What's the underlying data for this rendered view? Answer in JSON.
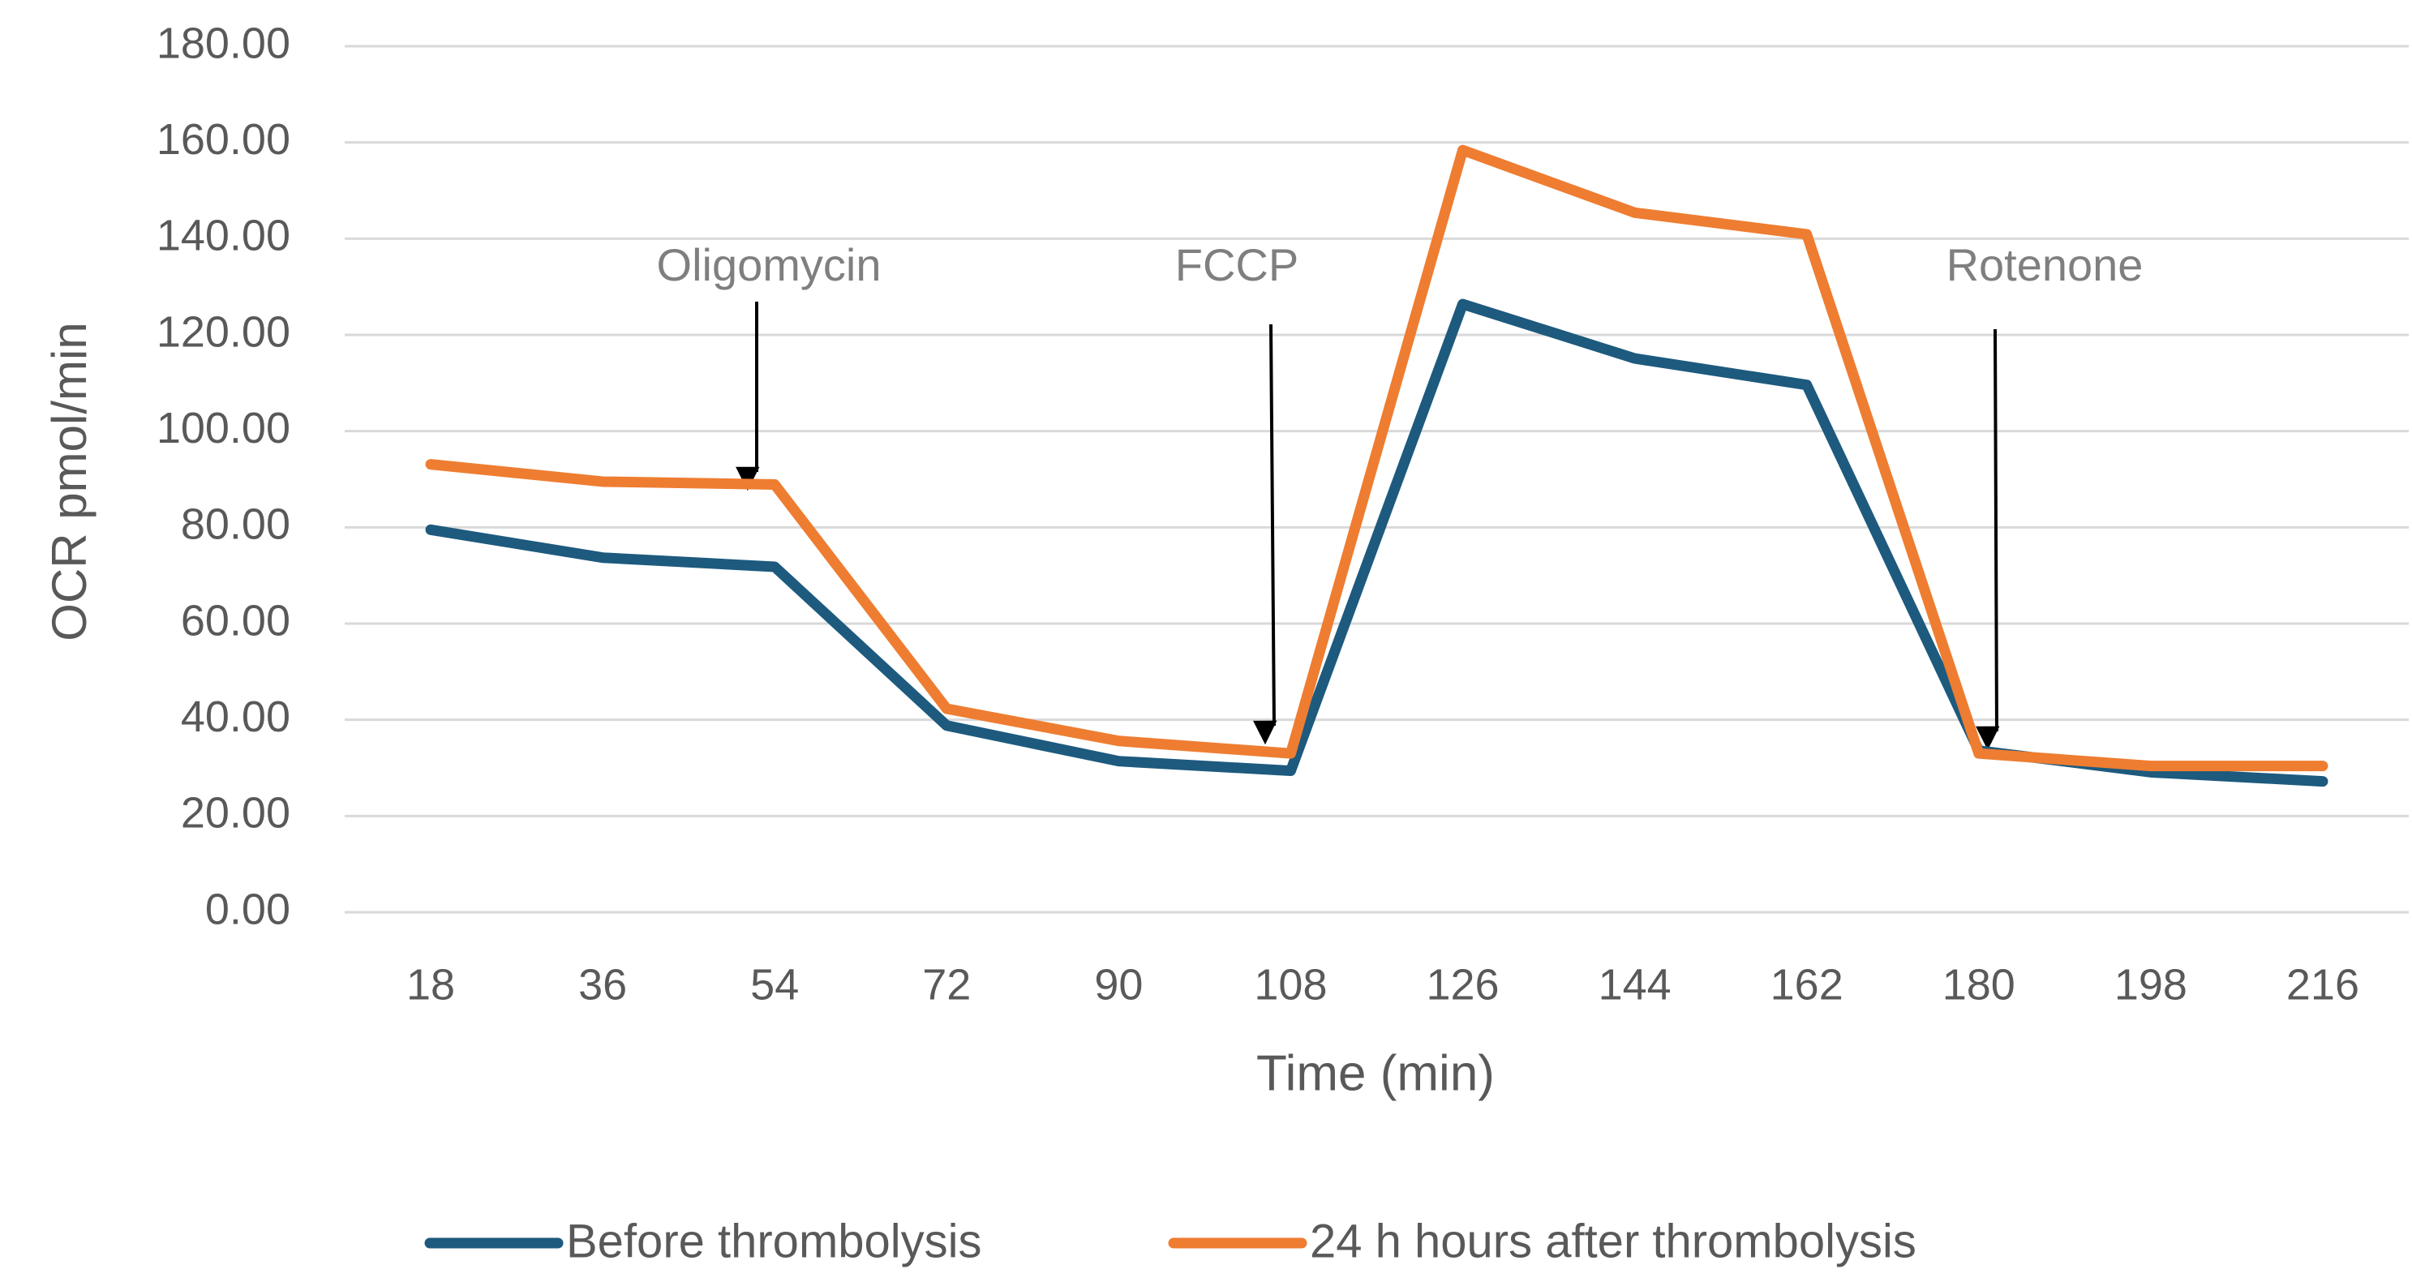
{
  "chart_data": {
    "type": "line",
    "x_label": "Time (min)",
    "y_label": "OCR pmol/min",
    "categories": [
      "18",
      "36",
      "54",
      "72",
      "90",
      "108",
      "126",
      "144",
      "162",
      "180",
      "198",
      "216"
    ],
    "series": [
      {
        "name": "Before thrombolysis",
        "color": "#1d5a7e",
        "values": [
          79.5,
          73.7,
          71.8,
          38.8,
          31.4,
          29.4,
          126.4,
          115.1,
          109.6,
          33.6,
          29.1,
          27.2
        ]
      },
      {
        "name": "24 h hours after thrombolysis",
        "color": "#ee7d31",
        "values": [
          93.1,
          89.5,
          88.9,
          42.3,
          35.6,
          33.0,
          158.4,
          145.4,
          140.9,
          33.0,
          30.4,
          30.4
        ]
      }
    ],
    "ylim": [
      0,
      180
    ],
    "yticks": [
      {
        "value": 0,
        "label": "0.00"
      },
      {
        "value": 20,
        "label": "20.00"
      },
      {
        "value": 40,
        "label": "40.00"
      },
      {
        "value": 60,
        "label": "60.00"
      },
      {
        "value": 80,
        "label": "80.00"
      },
      {
        "value": 100,
        "label": "100.00"
      },
      {
        "value": 120,
        "label": "120.00"
      },
      {
        "value": 140,
        "label": "140.00"
      },
      {
        "value": 160,
        "label": "160.00"
      },
      {
        "value": 180,
        "label": "180.00"
      }
    ],
    "grid": true,
    "annotations": [
      "Oligomycin",
      "FCCP",
      "Rotenone"
    ]
  }
}
